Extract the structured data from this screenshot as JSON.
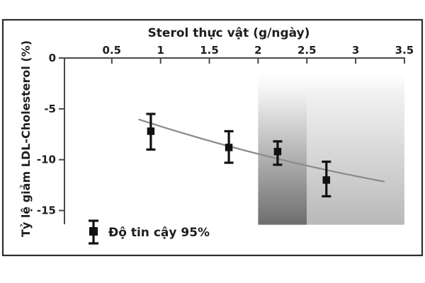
{
  "figure": {
    "background": "#ffffff",
    "border_color": "#2e2e2e"
  },
  "chart_data": {
    "type": "scatter",
    "title": "Sterol thực vật (g/ngày)",
    "xlabel": "Sterol thực vật (g/ngày)",
    "ylabel": "Tỷ lệ giảm LDL-Cholesterol (%)",
    "x_axis_position": "top",
    "grid": false,
    "xlim": [
      0,
      3.5
    ],
    "ylim": [
      -17,
      0
    ],
    "x_ticks": [
      0.5,
      1,
      1.5,
      2,
      2.5,
      3,
      3.5
    ],
    "y_ticks": [
      0,
      -5,
      -10,
      -15
    ],
    "points": [
      {
        "x": 0.9,
        "y": -7.2,
        "ci_high": -5.5,
        "ci_low": -9.0
      },
      {
        "x": 1.7,
        "y": -8.8,
        "ci_high": -7.2,
        "ci_low": -10.3
      },
      {
        "x": 2.2,
        "y": -9.2,
        "ci_high": -8.2,
        "ci_low": -10.5
      },
      {
        "x": 2.7,
        "y": -12.0,
        "ci_high": -10.2,
        "ci_low": -13.6
      }
    ],
    "trend_curve": {
      "start": {
        "x": 0.78,
        "y": -6.05
      },
      "control": {
        "x": 2.0,
        "y": -9.85
      },
      "end": {
        "x": 3.29,
        "y": -12.15
      }
    },
    "shaded_bands": [
      {
        "x_from": 2.0,
        "x_to": 2.5,
        "y_from": -1.6,
        "y_to": -16.4,
        "gradient_top": "#ffffff",
        "gradient_bottom": "#6e6e6e"
      },
      {
        "x_from": 2.5,
        "x_to": 3.5,
        "y_from": -1.6,
        "y_to": -16.4,
        "gradient_top": "#ffffff",
        "gradient_bottom": "#b9b9b9"
      }
    ],
    "legend": {
      "label": "Độ tin cậy 95%",
      "symbol": "error-bar",
      "position": "bottom-left"
    },
    "colors": {
      "marker": "#111111",
      "curve": "#8a8a8a",
      "axis": "#4a4a4a",
      "text": "#1f1f1f"
    }
  }
}
